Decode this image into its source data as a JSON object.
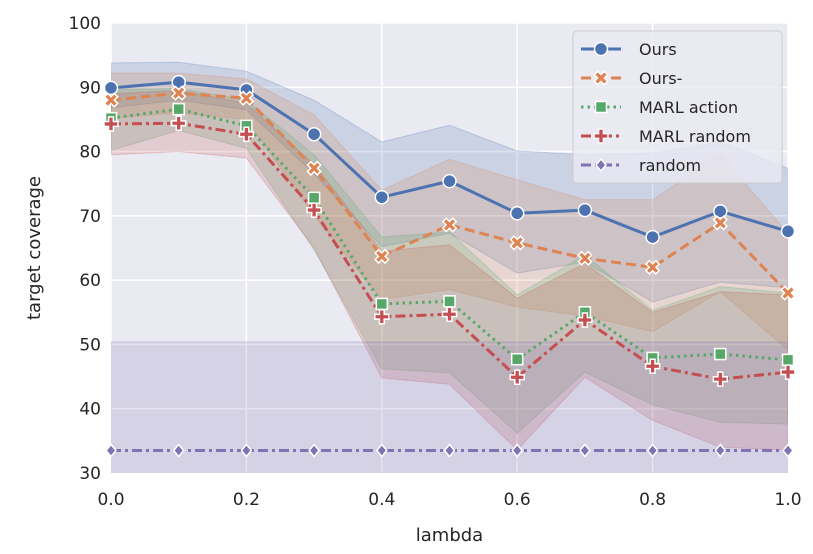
{
  "chart_data": {
    "type": "line",
    "title": "",
    "xlabel": "lambda",
    "ylabel": "target coverage",
    "xlim": [
      0.0,
      1.0
    ],
    "ylim": [
      30,
      100
    ],
    "grid": true,
    "legend_position": "top-right",
    "x": [
      0.0,
      0.1,
      0.2,
      0.3,
      0.4,
      0.5,
      0.6,
      0.7,
      0.8,
      0.9,
      1.0
    ],
    "xticks": [
      0.0,
      0.2,
      0.4,
      0.6,
      0.8,
      1.0
    ],
    "xtick_labels": [
      "0.0",
      "0.2",
      "0.4",
      "0.6",
      "0.8",
      "1.0"
    ],
    "yticks": [
      30,
      40,
      50,
      60,
      70,
      80,
      90,
      100
    ],
    "ytick_labels": [
      "30",
      "40",
      "50",
      "60",
      "70",
      "80",
      "90",
      "100"
    ],
    "background_color": "#eaeaf2",
    "series": [
      {
        "name": "Ours",
        "color": "#4c72b0",
        "marker": "circle",
        "linestyle": "solid",
        "values": [
          89.9,
          90.8,
          89.6,
          82.7,
          72.9,
          75.4,
          70.4,
          70.9,
          66.7,
          70.7,
          67.6
        ],
        "ci_upper": [
          93.8,
          93.9,
          92.5,
          88.0,
          81.5,
          84.1,
          80.1,
          79.5,
          79.8,
          81.5,
          77.4
        ],
        "ci_lower": [
          86.8,
          88.0,
          86.5,
          76.5,
          65.2,
          67.3,
          61.1,
          62.8,
          56.6,
          59.7,
          58.8
        ]
      },
      {
        "name": "Ours-",
        "color": "#dd8452",
        "marker": "x",
        "linestyle": "dashed",
        "values": [
          88.0,
          89.1,
          88.3,
          77.4,
          63.7,
          68.6,
          65.8,
          63.4,
          62.0,
          68.9,
          58.0
        ],
        "ci_upper": [
          92.2,
          92.2,
          91.3,
          85.7,
          74.0,
          78.8,
          75.6,
          72.5,
          72.5,
          79.5,
          67.3
        ],
        "ci_lower": [
          85.2,
          86.0,
          85.0,
          70.0,
          57.0,
          58.5,
          55.8,
          54.4,
          52.0,
          58.2,
          49.1
        ]
      },
      {
        "name": "MARL action",
        "color": "#55a868",
        "marker": "square",
        "linestyle": "dotted",
        "values": [
          85.2,
          86.6,
          84.0,
          72.8,
          56.3,
          56.7,
          47.7,
          55.0,
          47.9,
          48.5,
          47.6
        ],
        "ci_upper": [
          89.6,
          89.8,
          88.0,
          79.5,
          66.7,
          67.5,
          57.7,
          63.9,
          55.3,
          59.0,
          58.0
        ],
        "ci_lower": [
          80.2,
          83.3,
          80.5,
          64.7,
          46.2,
          45.6,
          36.2,
          45.7,
          40.6,
          37.9,
          37.6
        ]
      },
      {
        "name": "MARL random",
        "color": "#c44e52",
        "marker": "plus",
        "linestyle": "dashdot",
        "values": [
          84.3,
          84.4,
          82.7,
          70.9,
          54.3,
          54.7,
          44.9,
          53.8,
          46.6,
          44.6,
          45.7
        ],
        "ci_upper": [
          89.0,
          89.5,
          87.5,
          78.0,
          64.5,
          65.5,
          57.2,
          62.6,
          55.0,
          58.2,
          57.7
        ],
        "ci_lower": [
          79.5,
          80.0,
          79.0,
          65.0,
          44.8,
          43.8,
          33.6,
          44.9,
          38.2,
          34.0,
          33.6
        ]
      },
      {
        "name": "random",
        "color": "#8172b3",
        "marker": "diamond",
        "linestyle": "dashdot",
        "values": [
          33.5,
          33.5,
          33.5,
          33.5,
          33.5,
          33.5,
          33.5,
          33.5,
          33.5,
          33.5,
          33.5
        ],
        "ci_upper": [
          50.4,
          50.4,
          50.4,
          50.4,
          50.4,
          50.4,
          50.4,
          50.4,
          50.4,
          50.4,
          50.4
        ],
        "ci_lower": [
          30.0,
          30.0,
          30.0,
          30.0,
          30.0,
          30.0,
          30.0,
          30.0,
          30.0,
          30.0,
          30.0
        ]
      }
    ]
  }
}
